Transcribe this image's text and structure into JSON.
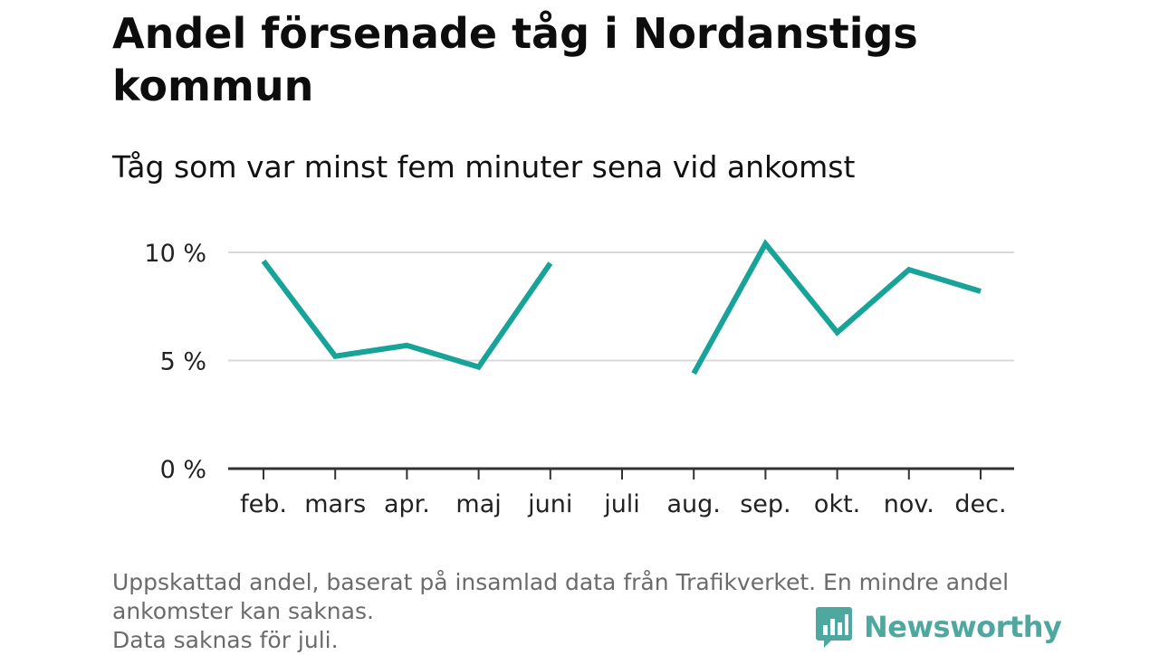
{
  "title": "Andel försenade tåg i Nordanstigs kommun",
  "subtitle": "Tåg som var minst fem minuter sena vid ankomst",
  "footer": {
    "line1": "Uppskattad andel, baserat på insamlad data från Trafikverket. En mindre andel",
    "line2": "ankomster kan saknas.",
    "line3": "Data saknas för juli."
  },
  "brand": {
    "name": "Newsworthy",
    "icon": "bar-chart-speech-bubble-icon",
    "color": "#4fa8a0"
  },
  "chart_data": {
    "type": "line",
    "categories": [
      "feb.",
      "mars",
      "apr.",
      "maj",
      "juni",
      "juli",
      "aug.",
      "sep.",
      "okt.",
      "nov.",
      "dec."
    ],
    "series": [
      {
        "values": [
          9.6,
          5.2,
          5.7,
          4.7,
          9.5,
          null,
          4.4,
          10.4,
          6.3,
          9.2,
          8.2
        ],
        "color": "#17a398"
      }
    ],
    "yticks": [
      {
        "value": 0,
        "label": "0 %"
      },
      {
        "value": 5,
        "label": "5 %"
      },
      {
        "value": 10,
        "label": "10 %"
      }
    ],
    "ylim": [
      0,
      10.5
    ],
    "grid": true,
    "xlabel": "",
    "ylabel": ""
  }
}
